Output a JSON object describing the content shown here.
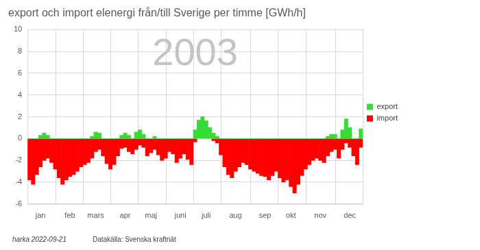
{
  "chart_data": {
    "type": "bar",
    "title": "export och import elenergi från/till Sverige per timme [GWh/h]",
    "annotations": [
      "2003",
      "harka 2022-09-21",
      "Datakälla: Svenska kraftnät"
    ],
    "categories": [
      null,
      null,
      null,
      "jan",
      null,
      null,
      null,
      null,
      null,
      null,
      null,
      "feb",
      null,
      null,
      null,
      null,
      null,
      null,
      "mars",
      null,
      null,
      null,
      null,
      null,
      null,
      null,
      "apr",
      null,
      null,
      null,
      null,
      null,
      null,
      "maj",
      null,
      null,
      null,
      null,
      null,
      null,
      null,
      "juni",
      null,
      null,
      null,
      null,
      null,
      null,
      "juli",
      null,
      null,
      null,
      null,
      null,
      null,
      null,
      "aug",
      null,
      null,
      null,
      null,
      null,
      null,
      null,
      "sep",
      null,
      null,
      null,
      null,
      null,
      null,
      "okt",
      null,
      null,
      null,
      null,
      null,
      null,
      null,
      "nov",
      null,
      null,
      null,
      null,
      null,
      null,
      null,
      "dec",
      null,
      null,
      null
    ],
    "series": [
      {
        "name": "export",
        "color": "#33dd33",
        "values": [
          0,
          0,
          0,
          0.3,
          0.5,
          0.3,
          0,
          0,
          0,
          0,
          0,
          0,
          0,
          0,
          0,
          0,
          0,
          0.2,
          0.6,
          0.5,
          0,
          0,
          0,
          0,
          0,
          0.3,
          0.5,
          0.3,
          0,
          0.6,
          0.8,
          0.4,
          0,
          0,
          0.2,
          0,
          0,
          0,
          0,
          0,
          0,
          0,
          0,
          0,
          0,
          0.8,
          1.7,
          2.0,
          1.6,
          1.0,
          0.5,
          0.2,
          0,
          0,
          0,
          0,
          0,
          0,
          0,
          0,
          0,
          0,
          0,
          0,
          0,
          0,
          0,
          0,
          0,
          0,
          0,
          0,
          0,
          0,
          0,
          0,
          0,
          0,
          0,
          0,
          0,
          0.2,
          0.4,
          0.4,
          0,
          0.8,
          1.8,
          1.0,
          0,
          0,
          0.9
        ]
      },
      {
        "name": "import",
        "color": "#ff0000",
        "values": [
          -3.8,
          -4.2,
          -3.3,
          -2.6,
          -2.0,
          -1.8,
          -2.2,
          -2.8,
          -3.6,
          -4.2,
          -3.8,
          -3.5,
          -3.3,
          -3.0,
          -2.6,
          -2.4,
          -2.2,
          -1.8,
          -1.2,
          -1.0,
          -1.6,
          -2.3,
          -2.8,
          -2.4,
          -1.6,
          -0.9,
          -0.8,
          -1.2,
          -1.4,
          -1.0,
          -0.6,
          -0.8,
          -1.6,
          -1.3,
          -1.0,
          -1.5,
          -2.0,
          -1.8,
          -1.2,
          -1.4,
          -2.2,
          -1.8,
          -1.4,
          -1.9,
          -2.4,
          -0.3,
          0,
          0,
          0,
          0,
          -0.2,
          -0.4,
          -1.5,
          -2.6,
          -3.3,
          -3.6,
          -3.0,
          -2.6,
          -2.2,
          -2.4,
          -2.8,
          -3.0,
          -3.2,
          -3.4,
          -3.5,
          -3.8,
          -3.4,
          -3.0,
          -3.6,
          -4.0,
          -3.8,
          -4.4,
          -5.0,
          -4.2,
          -3.4,
          -2.8,
          -2.4,
          -2.0,
          -1.8,
          -2.0,
          -2.2,
          -1.6,
          -1.2,
          -1.0,
          -1.8,
          -1.0,
          -0.4,
          -0.8,
          -1.6,
          -2.4,
          -0.8
        ]
      }
    ],
    "ylim": [
      -6,
      10
    ],
    "yticks": [
      -6,
      -4,
      -2,
      0,
      2,
      4,
      6,
      8,
      10
    ],
    "grid": true,
    "stacked": true,
    "legend": "right"
  }
}
